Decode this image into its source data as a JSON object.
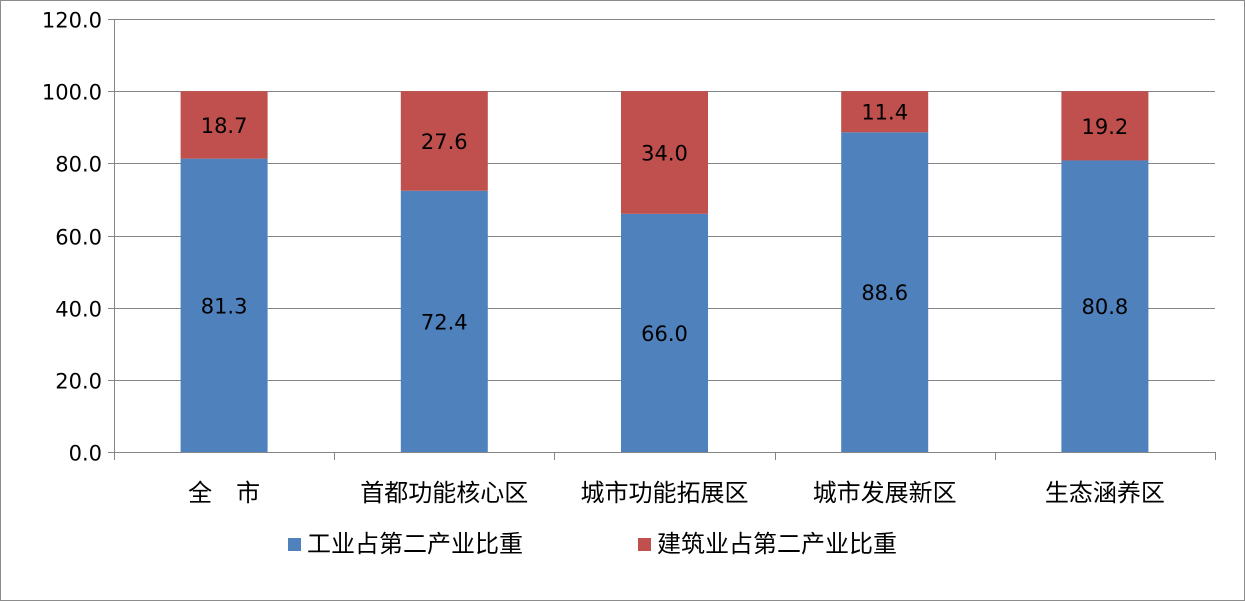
{
  "chart_data": {
    "type": "bar",
    "stacked": true,
    "categories": [
      "全　市",
      "首都功能核心区",
      "城市功能拓展区",
      "城市发展新区",
      "生态涵养区"
    ],
    "series": [
      {
        "name": "工业占第二产业比重",
        "color": "#4f81bd",
        "values": [
          81.3,
          72.4,
          66.0,
          88.6,
          80.8
        ]
      },
      {
        "name": "建筑业占第二产业比重",
        "color": "#c0504d",
        "values": [
          18.7,
          27.6,
          34.0,
          11.4,
          19.2
        ]
      }
    ],
    "ylim": [
      0,
      120
    ],
    "yticks": [
      0,
      20,
      40,
      60,
      80,
      100,
      120
    ],
    "tick_format_decimals": 1,
    "grid": true,
    "legend_position": "bottom",
    "title": "",
    "xlabel": "",
    "ylabel": ""
  }
}
